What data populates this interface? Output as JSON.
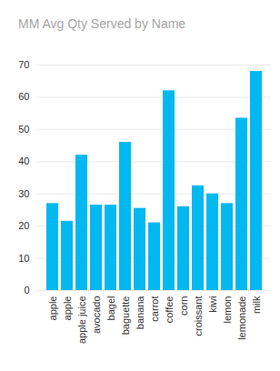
{
  "chart_data": {
    "type": "bar",
    "title": "MM Avg Qty Served by Name",
    "categories": [
      "apple",
      "apple",
      "apple juice",
      "avocado",
      "bagel",
      "baguette",
      "banana",
      "carrot",
      "coffee",
      "corn",
      "croissant",
      "kiwi",
      "lemon",
      "lemonade",
      "milk"
    ],
    "values": [
      27,
      21.5,
      42,
      26.5,
      26.5,
      46,
      25.5,
      21,
      62,
      26,
      32.5,
      30,
      27,
      53.5,
      68
    ],
    "color": "#01B8F0",
    "ylim": [
      0,
      70
    ],
    "yticks": [
      0,
      10,
      20,
      30,
      40,
      50,
      60,
      70
    ],
    "grid": true
  }
}
